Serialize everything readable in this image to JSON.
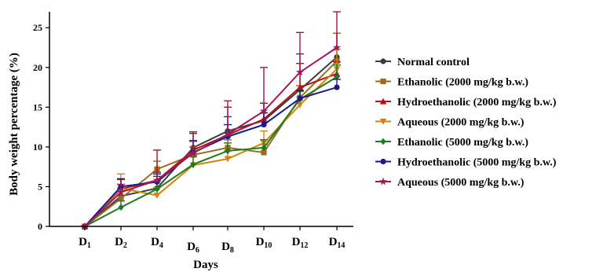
{
  "chart_data": {
    "type": "line",
    "xlabel": "Days",
    "ylabel": "Body weight percentage (%)",
    "ylim": [
      0,
      27
    ],
    "yticks": [
      0,
      5,
      10,
      15,
      20,
      25
    ],
    "categories": [
      {
        "base": "D",
        "sub": "1"
      },
      {
        "base": "D",
        "sub": "2"
      },
      {
        "base": "D",
        "sub": "4"
      },
      {
        "base": "D",
        "sub": "6"
      },
      {
        "base": "D",
        "sub": "8"
      },
      {
        "base": "D",
        "sub": "10"
      },
      {
        "base": "D",
        "sub": "12"
      },
      {
        "base": "D",
        "sub": "14"
      }
    ],
    "legend_position": "right",
    "series": [
      {
        "name": "Normal control",
        "color": "#3d3d3d",
        "marker": "circle",
        "values": [
          0,
          3.8,
          4.8,
          9.9,
          12.0,
          13.3,
          17.2,
          21.3
        ],
        "errors": [
          0,
          1.0,
          1.5,
          1.8,
          1.8,
          2.2,
          4.5,
          3.0
        ]
      },
      {
        "name": "Ethanolic (2000 mg/kg b.w.)",
        "color": "#9b6a1e",
        "marker": "square",
        "values": [
          0,
          3.5,
          7.2,
          9.0,
          9.9,
          9.3,
          16.2,
          20.8
        ],
        "errors": [
          0,
          1.0,
          1.0,
          1.0,
          1.0,
          1.0,
          1.5,
          3.5
        ]
      },
      {
        "name": "Hydroethanolic (2000 mg/kg b.w.)",
        "color": "#b01515",
        "marker": "triangle-up",
        "values": [
          0,
          4.7,
          5.8,
          9.6,
          11.5,
          13.5,
          17.5,
          19.2
        ],
        "errors": [
          0,
          1.2,
          3.8,
          2.3,
          3.5,
          2.0,
          3.0,
          1.5
        ]
      },
      {
        "name": "Aqueous (2000 mg/kg b.w.)",
        "color": "#d6820a",
        "marker": "triangle-down",
        "values": [
          0,
          4.8,
          3.9,
          7.7,
          8.5,
          10.5,
          15.3,
          19.8
        ],
        "errors": [
          0,
          1.8,
          1.0,
          1.2,
          1.0,
          1.5,
          1.0,
          2.5
        ]
      },
      {
        "name": "Ethanolic (5000 mg/kg b.w.)",
        "color": "#1d7a1d",
        "marker": "diamond",
        "values": [
          0,
          2.4,
          4.7,
          7.8,
          9.5,
          9.9,
          16.0,
          18.8
        ],
        "errors": [
          0,
          0.8,
          1.0,
          1.0,
          1.0,
          1.0,
          1.0,
          1.5
        ]
      },
      {
        "name": "Hydroethanolic (5000 mg/kg b.w.)",
        "color": "#1a1a8a",
        "marker": "circle",
        "values": [
          0,
          5.0,
          5.6,
          9.3,
          11.3,
          12.8,
          16.1,
          17.5
        ],
        "errors": [
          0,
          1.0,
          1.0,
          1.5,
          1.5,
          1.5,
          1.0,
          1.0
        ]
      },
      {
        "name": "Aqueous (5000 mg/kg b.w.)",
        "color": "#a0175d",
        "marker": "star",
        "values": [
          0,
          4.3,
          5.8,
          9.2,
          11.6,
          14.5,
          19.4,
          22.5
        ],
        "errors": [
          0,
          1.0,
          1.0,
          1.5,
          4.2,
          5.5,
          5.0,
          4.5
        ]
      }
    ]
  }
}
